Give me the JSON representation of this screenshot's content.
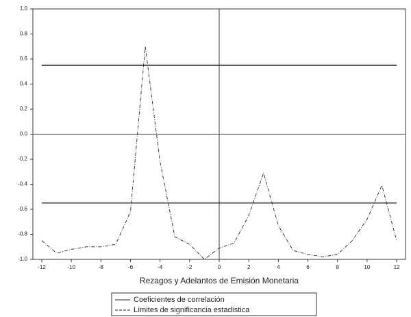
{
  "chart_data": {
    "type": "line",
    "x_axis_label": "Rezagos y Adelantos de Emisión Monetaria",
    "x": [
      -12,
      -11,
      -10,
      -9,
      -8,
      -7,
      -6,
      -5,
      -4,
      -3,
      -2,
      -1,
      0,
      1,
      2,
      3,
      4,
      5,
      6,
      7,
      8,
      9,
      10,
      11,
      12
    ],
    "series": [
      {
        "name": "Coeficientes de correlación",
        "color": "#222222",
        "values": [
          -0.85,
          -0.95,
          -0.92,
          -0.9,
          -0.9,
          -0.88,
          -0.62,
          0.7,
          -0.22,
          -0.82,
          -0.88,
          -1.0,
          -0.91,
          -0.87,
          -0.65,
          -0.31,
          -0.73,
          -0.93,
          -0.96,
          -0.98,
          -0.96,
          -0.85,
          -0.68,
          -0.41,
          -0.85
        ]
      }
    ],
    "limits": {
      "name": "Límites de significancia estadística",
      "color": "#222222",
      "values": [
        0.55,
        -0.55
      ]
    },
    "xlim": [
      -12.6,
      12.6
    ],
    "ylim": [
      -1.0,
      1.0
    ],
    "xticks": [
      -12,
      -10,
      -8,
      -6,
      -4,
      -2,
      0,
      2,
      4,
      6,
      8,
      10,
      12
    ],
    "yticks": [
      {
        "value": -1.0,
        "label": "-1.0"
      },
      -0.8,
      -0.6,
      -0.4,
      -0.2,
      {
        "value": 0,
        "label": "0.0"
      },
      0.2,
      0.4,
      0.6,
      0.8,
      {
        "value": 1.0,
        "label": "1.0"
      }
    ]
  }
}
